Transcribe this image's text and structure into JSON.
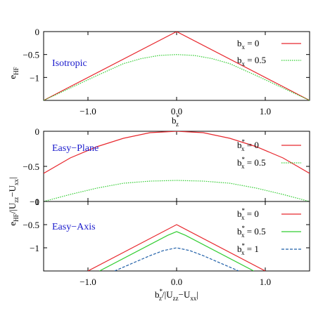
{
  "chart_data": [
    {
      "type": "line",
      "annotation": {
        "text": "Isotropic",
        "color": "#1a1acc"
      },
      "xlabel": {
        "main": "b",
        "sub": "z",
        "sup": "*"
      },
      "ylabel": {
        "main": "e",
        "sub": "HF"
      },
      "xlim": [
        -1.5,
        1.5
      ],
      "ylim": [
        -1.5,
        0
      ],
      "x_ticks": [
        -1.0,
        0.0,
        1.0
      ],
      "x_tick_labels": [
        "−1.0",
        "0.0",
        "1.0"
      ],
      "y_ticks": [
        0,
        -0.5,
        -1
      ],
      "y_tick_labels": [
        "0",
        "−0.5",
        "−1"
      ],
      "legend": {
        "position": "top-right"
      },
      "series": [
        {
          "label": {
            "main": "b",
            "sub": "x",
            "rest": " = 0"
          },
          "color": "#e8282e",
          "dash": "solid",
          "x": [
            -1.5,
            0.0,
            1.5
          ],
          "y": [
            -1.5,
            0.0,
            -1.5
          ]
        },
        {
          "label": {
            "main": "b",
            "sub": "x",
            "rest": " = 0.5"
          },
          "color": "#32cd32",
          "dash": "dotted",
          "x": [
            -1.5,
            -1.2,
            -0.9,
            -0.6,
            -0.4,
            -0.2,
            0.0,
            0.2,
            0.4,
            0.6,
            0.9,
            1.2,
            1.5
          ],
          "y": [
            -1.5,
            -1.23,
            -0.96,
            -0.7,
            -0.59,
            -0.52,
            -0.5,
            -0.52,
            -0.59,
            -0.7,
            -0.96,
            -1.23,
            -1.5
          ]
        }
      ]
    },
    {
      "type": "line",
      "annotation": {
        "text": "Easy−Plane",
        "color": "#1a1acc"
      },
      "xlim": [
        -1.5,
        1.5
      ],
      "ylim": [
        -1,
        0
      ],
      "y_ticks": [
        0,
        -0.5,
        -1
      ],
      "y_tick_labels": [
        "0",
        "−0.5",
        "−1"
      ],
      "legend": {
        "position": "top-right"
      },
      "series": [
        {
          "label": {
            "main": "b",
            "sub": "x",
            "sup": "*",
            "rest": " = 0"
          },
          "color": "#e8282e",
          "dash": "solid",
          "x": [
            -1.5,
            -1.2,
            -0.9,
            -0.6,
            -0.3,
            0.0,
            0.3,
            0.6,
            0.9,
            1.2,
            1.5
          ],
          "y": [
            -0.6,
            -0.38,
            -0.22,
            -0.1,
            -0.02,
            0.0,
            -0.02,
            -0.1,
            -0.22,
            -0.38,
            -0.6
          ]
        },
        {
          "label": {
            "main": "b",
            "sub": "x",
            "sup": "*",
            "rest": " = 0.5"
          },
          "color": "#32cd32",
          "dash": "dotted",
          "x": [
            -1.5,
            -1.2,
            -0.9,
            -0.6,
            -0.3,
            0.0,
            0.3,
            0.6,
            0.9,
            1.2,
            1.5
          ],
          "y": [
            -1.0,
            -0.9,
            -0.81,
            -0.74,
            -0.71,
            -0.7,
            -0.71,
            -0.74,
            -0.81,
            -0.9,
            -1.0
          ]
        }
      ]
    },
    {
      "type": "line",
      "annotation": {
        "text": "Easy−Axis",
        "color": "#1a1acc"
      },
      "xlabel": {
        "main": "b",
        "sub": "z",
        "sup": "*",
        "rest": "/|U",
        "sub2": "zz",
        "rest2": "−U",
        "sub3": "xx",
        "rest3": "|"
      },
      "ylabel": {
        "main": "e",
        "sub": "HF",
        "rest": "/|U",
        "sub2": "zz",
        "rest2": "−U",
        "sub3": "xx",
        "rest3": "|"
      },
      "xlim": [
        -1.5,
        1.5
      ],
      "ylim": [
        -1.5,
        0
      ],
      "x_ticks": [
        -1.0,
        0.0,
        1.0
      ],
      "x_tick_labels": [
        "−1.0",
        "0.0",
        "1.0"
      ],
      "y_ticks": [
        0,
        -0.5,
        -1
      ],
      "y_tick_labels": [
        "0",
        "−0.5",
        "−1"
      ],
      "legend": {
        "position": "top-right"
      },
      "series": [
        {
          "label": {
            "main": "b",
            "sub": "x",
            "sup": "*",
            "rest": " = 0"
          },
          "color": "#e8282e",
          "dash": "solid",
          "x": [
            -1.0,
            0.0,
            1.0
          ],
          "y": [
            -1.5,
            -0.5,
            -1.5
          ]
        },
        {
          "label": {
            "main": "b",
            "sub": "x",
            "sup": "*",
            "rest": " = 0.5"
          },
          "color": "#32cd32",
          "dash": "solid",
          "x": [
            -0.87,
            -0.1,
            0.0,
            0.1,
            0.87
          ],
          "y": [
            -1.5,
            -0.73,
            -0.65,
            -0.73,
            -1.5
          ]
        },
        {
          "label": {
            "main": "b",
            "sub": "x",
            "sup": "*",
            "rest": " = 1"
          },
          "color": "#1f5fa8",
          "dash": "dashed",
          "x": [
            -0.7,
            -0.3,
            -0.15,
            0.0,
            0.15,
            0.3,
            0.7
          ],
          "y": [
            -1.5,
            -1.17,
            -1.06,
            -1.0,
            -1.06,
            -1.17,
            -1.5
          ]
        }
      ]
    }
  ]
}
